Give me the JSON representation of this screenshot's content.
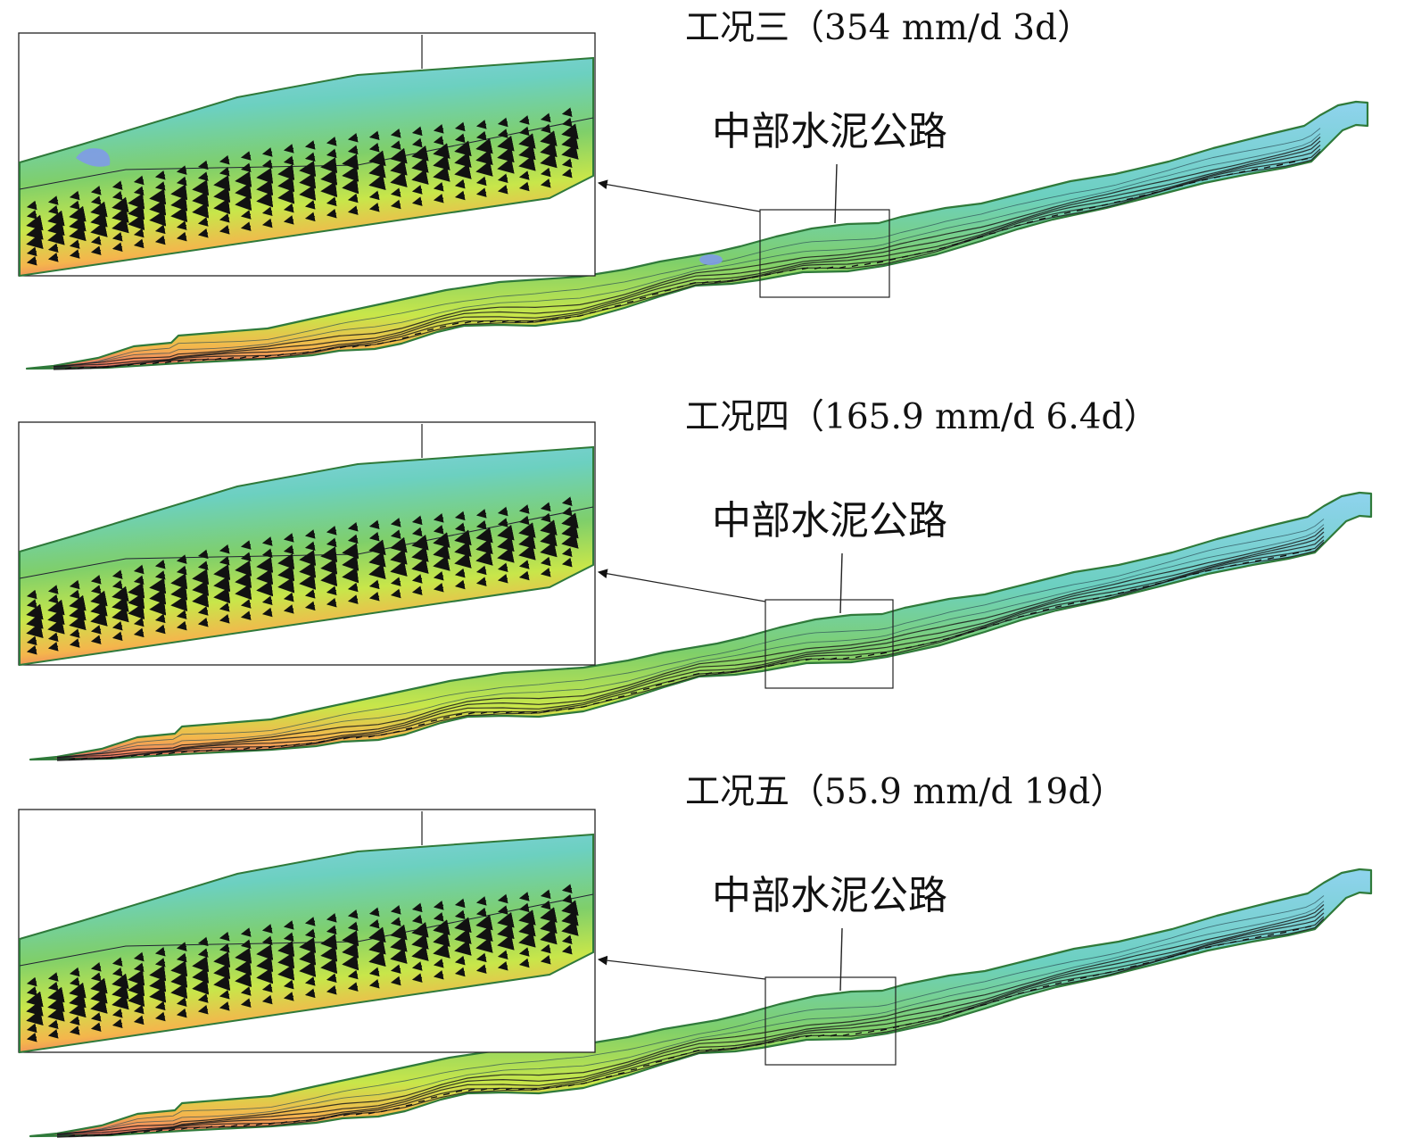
{
  "panels": [
    {
      "id": "case3",
      "title": "工况三（354 mm/d 3d）",
      "road_label": "中部水泥公路",
      "ponding": true
    },
    {
      "id": "case4",
      "title": "工况四（165.9 mm/d 6.4d）",
      "road_label": "中部水泥公路",
      "ponding": false
    },
    {
      "id": "case5",
      "title": "工况五（55.9 mm/d 19d）",
      "road_label": "中部水泥公路",
      "ponding": false
    }
  ],
  "colors": {
    "low_head": "#8fd3ee",
    "mid_low": "#6cd0c0",
    "mid": "#7fcf6a",
    "mid_high": "#c8e64a",
    "high": "#f4b64c",
    "max_head": "#ef6f6a",
    "ponding": "#7f9ae8",
    "outline": "#2f7a3a",
    "arrow": "#111111"
  }
}
